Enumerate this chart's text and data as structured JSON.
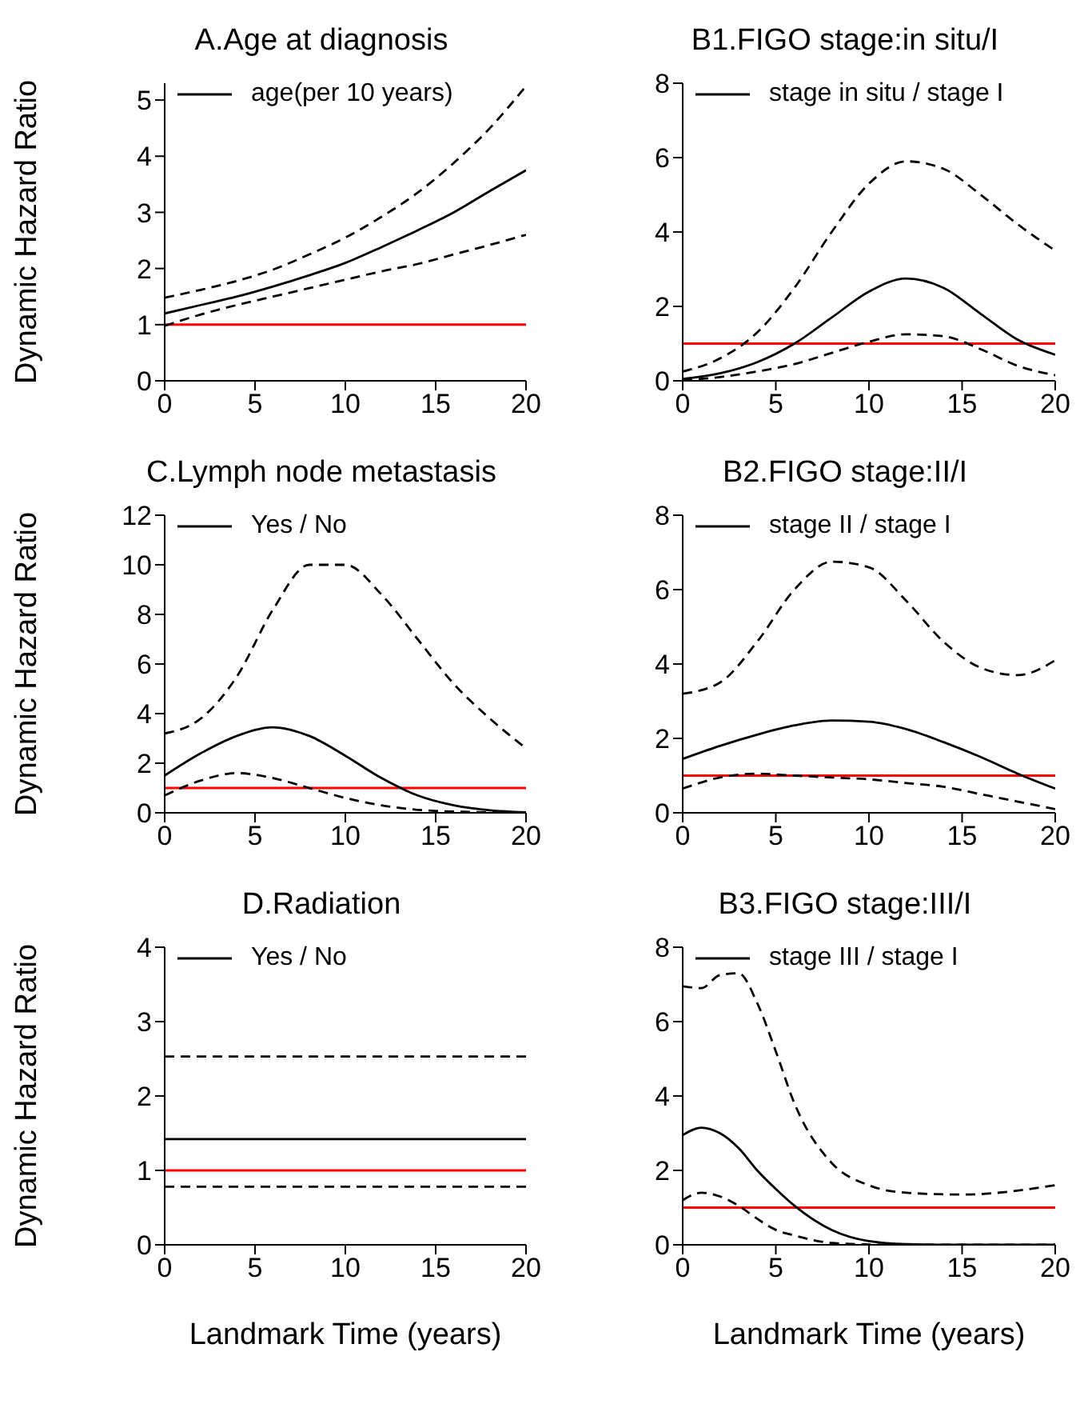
{
  "chart_data": [
    {
      "type": "line",
      "title": "A.Age at diagnosis",
      "ylabel": "Dynamic Hazard Ratio",
      "x": [
        0,
        2,
        4,
        6,
        8,
        10,
        12,
        14,
        16,
        18,
        20
      ],
      "xlim": [
        0,
        20
      ],
      "xticks": [
        0,
        5,
        10,
        15,
        20
      ],
      "ylim": [
        0,
        5.3
      ],
      "yticks": [
        0,
        1,
        2,
        3,
        4,
        5
      ],
      "legend": "top left",
      "marker": "none",
      "series": [
        {
          "name": "age(per 10 years)",
          "color": "#000000",
          "line_style": "solid",
          "values": [
            1.2,
            1.35,
            1.5,
            1.68,
            1.88,
            2.1,
            2.38,
            2.68,
            3.0,
            3.38,
            3.75
          ]
        },
        {
          "color": "#000000",
          "line_style": "dashed",
          "values": [
            1.48,
            1.62,
            1.78,
            1.98,
            2.25,
            2.55,
            2.92,
            3.35,
            3.88,
            4.5,
            5.25
          ]
        },
        {
          "color": "#000000",
          "line_style": "dashed",
          "values": [
            0.98,
            1.18,
            1.35,
            1.5,
            1.65,
            1.8,
            1.95,
            2.08,
            2.25,
            2.42,
            2.6
          ]
        }
      ],
      "ref_lines": [
        {
          "axis": "y",
          "value": 1,
          "color": "#ff0000"
        }
      ]
    },
    {
      "type": "line",
      "title": "B1.FIGO stage:in situ/I",
      "x": [
        0,
        2,
        4,
        6,
        8,
        10,
        12,
        14,
        16,
        18,
        20
      ],
      "xlim": [
        0,
        20
      ],
      "xticks": [
        0,
        5,
        10,
        15,
        20
      ],
      "ylim": [
        0,
        8
      ],
      "yticks": [
        0,
        2,
        4,
        6,
        8
      ],
      "legend": "top left",
      "marker": "none",
      "series": [
        {
          "name": "stage in situ / stage I",
          "color": "#000000",
          "line_style": "solid",
          "values": [
            0.05,
            0.2,
            0.5,
            1.0,
            1.7,
            2.4,
            2.75,
            2.5,
            1.8,
            1.1,
            0.7
          ]
        },
        {
          "color": "#000000",
          "line_style": "dashed",
          "values": [
            0.25,
            0.6,
            1.3,
            2.5,
            4.0,
            5.3,
            5.9,
            5.7,
            5.0,
            4.2,
            3.5
          ]
        },
        {
          "color": "#000000",
          "line_style": "dashed",
          "values": [
            0.02,
            0.1,
            0.25,
            0.45,
            0.75,
            1.05,
            1.25,
            1.2,
            0.85,
            0.4,
            0.15
          ]
        }
      ],
      "ref_lines": [
        {
          "axis": "y",
          "value": 1,
          "color": "#ff0000"
        }
      ]
    },
    {
      "type": "line",
      "title": "C.Lymph node metastasis",
      "ylabel": "Dynamic Hazard Ratio",
      "x": [
        0,
        2,
        4,
        6,
        8,
        10,
        12,
        14,
        16,
        18,
        20
      ],
      "xlim": [
        0,
        20
      ],
      "xticks": [
        0,
        5,
        10,
        15,
        20
      ],
      "ylim": [
        0,
        12
      ],
      "yticks": [
        0,
        2,
        4,
        6,
        8,
        10,
        12
      ],
      "legend": "top left",
      "marker": "none",
      "series": [
        {
          "name": "Yes / No",
          "color": "#000000",
          "line_style": "solid",
          "values": [
            1.5,
            2.4,
            3.1,
            3.45,
            3.1,
            2.3,
            1.4,
            0.7,
            0.3,
            0.1,
            0.02
          ]
        },
        {
          "color": "#000000",
          "line_style": "dashed",
          "values": [
            3.2,
            3.8,
            5.5,
            8.2,
            10.0,
            10.0,
            8.8,
            7.0,
            5.2,
            3.8,
            2.6
          ]
        },
        {
          "color": "#000000",
          "line_style": "dashed",
          "values": [
            0.7,
            1.3,
            1.6,
            1.4,
            1.0,
            0.6,
            0.3,
            0.12,
            0.05,
            0.02,
            0.01
          ]
        }
      ],
      "ref_lines": [
        {
          "axis": "y",
          "value": 1,
          "color": "#ff0000"
        }
      ]
    },
    {
      "type": "line",
      "title": "B2.FIGO stage:II/I",
      "x": [
        0,
        2,
        4,
        6,
        8,
        10,
        12,
        14,
        16,
        18,
        20
      ],
      "xlim": [
        0,
        20
      ],
      "xticks": [
        0,
        5,
        10,
        15,
        20
      ],
      "ylim": [
        0,
        8
      ],
      "yticks": [
        0,
        2,
        4,
        6,
        8
      ],
      "legend": "top left",
      "marker": "none",
      "series": [
        {
          "name": "stage II / stage I",
          "color": "#000000",
          "line_style": "solid",
          "values": [
            1.45,
            1.8,
            2.1,
            2.35,
            2.48,
            2.45,
            2.25,
            1.9,
            1.5,
            1.05,
            0.65
          ]
        },
        {
          "color": "#000000",
          "line_style": "dashed",
          "values": [
            3.2,
            3.5,
            4.6,
            6.0,
            6.75,
            6.6,
            5.7,
            4.6,
            3.9,
            3.7,
            4.1
          ]
        },
        {
          "color": "#000000",
          "line_style": "dashed",
          "values": [
            0.65,
            0.95,
            1.05,
            1.0,
            0.95,
            0.9,
            0.8,
            0.7,
            0.5,
            0.3,
            0.1
          ]
        }
      ],
      "ref_lines": [
        {
          "axis": "y",
          "value": 1,
          "color": "#ff0000"
        }
      ]
    },
    {
      "type": "line",
      "title": "D.Radiation",
      "ylabel": "Dynamic Hazard Ratio",
      "xlabel": "Landmark Time (years)",
      "x": [
        0,
        20
      ],
      "xlim": [
        0,
        20
      ],
      "xticks": [
        0,
        5,
        10,
        15,
        20
      ],
      "ylim": [
        0,
        4
      ],
      "yticks": [
        0,
        1,
        2,
        3,
        4
      ],
      "legend": "top left",
      "marker": "none",
      "series": [
        {
          "name": "Yes / No",
          "color": "#000000",
          "line_style": "solid",
          "values": [
            1.42,
            1.42
          ]
        },
        {
          "color": "#000000",
          "line_style": "dashed",
          "values": [
            2.53,
            2.53
          ]
        },
        {
          "color": "#000000",
          "line_style": "dashed",
          "values": [
            0.78,
            0.78
          ]
        }
      ],
      "ref_lines": [
        {
          "axis": "y",
          "value": 1,
          "color": "#ff0000"
        }
      ]
    },
    {
      "type": "line",
      "title": "B3.FIGO stage:III/I",
      "xlabel": "Landmark Time (years)",
      "x": [
        0,
        1,
        2,
        3,
        4,
        5,
        6,
        8,
        10,
        12,
        15,
        20
      ],
      "xlim": [
        0,
        20
      ],
      "xticks": [
        0,
        5,
        10,
        15,
        20
      ],
      "ylim": [
        0,
        8
      ],
      "yticks": [
        0,
        2,
        4,
        6,
        8
      ],
      "legend": "top left",
      "marker": "none",
      "series": [
        {
          "name": "stage III / stage I",
          "color": "#000000",
          "line_style": "solid",
          "values": [
            2.95,
            3.15,
            3.0,
            2.6,
            2.0,
            1.5,
            1.05,
            0.4,
            0.1,
            0.02,
            0,
            0
          ]
        },
        {
          "color": "#000000",
          "line_style": "dashed",
          "values": [
            6.95,
            6.9,
            7.25,
            7.3,
            6.5,
            5.2,
            3.8,
            2.2,
            1.6,
            1.4,
            1.35,
            1.6
          ]
        },
        {
          "color": "#000000",
          "line_style": "dashed",
          "values": [
            1.2,
            1.4,
            1.3,
            1.05,
            0.7,
            0.4,
            0.25,
            0.05,
            0.01,
            0,
            0,
            0
          ]
        }
      ],
      "ref_lines": [
        {
          "axis": "y",
          "value": 1,
          "color": "#ff0000"
        }
      ]
    }
  ]
}
